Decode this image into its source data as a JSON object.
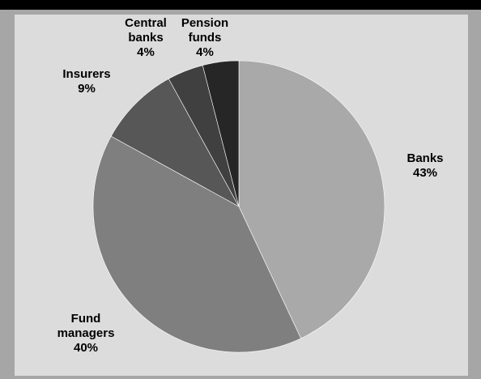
{
  "chart_data": {
    "type": "pie",
    "title": "",
    "categories": [
      "Banks",
      "Fund managers",
      "Insurers",
      "Central banks",
      "Pension funds"
    ],
    "values": [
      43,
      40,
      9,
      4,
      4
    ],
    "labels": [
      {
        "name_lines": [
          "Banks"
        ],
        "pct": "43%"
      },
      {
        "name_lines": [
          "Fund",
          "managers"
        ],
        "pct": "40%"
      },
      {
        "name_lines": [
          "Insurers"
        ],
        "pct": "9%"
      },
      {
        "name_lines": [
          "Central",
          "banks"
        ],
        "pct": "4%"
      },
      {
        "name_lines": [
          "Pension",
          "funds"
        ],
        "pct": "4%"
      }
    ],
    "colors": [
      "#a9a9a9",
      "#7f7f7f",
      "#575757",
      "#404040",
      "#262626"
    ],
    "legend": "none",
    "start_angle": "12 o'clock",
    "direction": "clockwise"
  }
}
